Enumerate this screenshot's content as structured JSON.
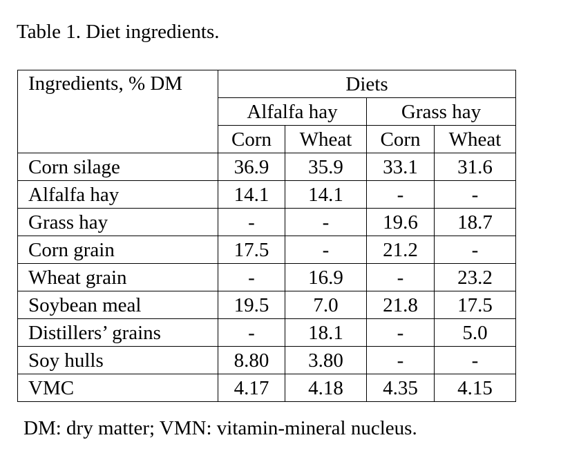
{
  "caption": "Table 1. Diet ingredients.",
  "table": {
    "corner_label": "Ingredients, % DM",
    "diets_label": "Diets",
    "groups": [
      "Alfalfa hay",
      "Grass hay"
    ],
    "subheaders": [
      "Corn",
      "Wheat",
      "Corn",
      "Wheat"
    ],
    "rows": [
      {
        "label": "Corn silage",
        "values": [
          "36.9",
          "35.9",
          "33.1",
          "31.6"
        ]
      },
      {
        "label": "Alfalfa hay",
        "values": [
          "14.1",
          "14.1",
          "-",
          "-"
        ]
      },
      {
        "label": "Grass hay",
        "values": [
          "-",
          "-",
          "19.6",
          "18.7"
        ]
      },
      {
        "label": "Corn grain",
        "values": [
          "17.5",
          "-",
          "21.2",
          "-"
        ]
      },
      {
        "label": "Wheat grain",
        "values": [
          "-",
          "16.9",
          "-",
          "23.2"
        ]
      },
      {
        "label": "Soybean meal",
        "values": [
          "19.5",
          "7.0",
          "21.8",
          "17.5"
        ]
      },
      {
        "label": "Distillers’ grains",
        "values": [
          "-",
          "18.1",
          "-",
          "5.0"
        ]
      },
      {
        "label": "Soy hulls",
        "values": [
          "8.80",
          "3.80",
          "-",
          "-"
        ]
      },
      {
        "label": "VMC",
        "values": [
          "4.17",
          "4.18",
          "4.35",
          "4.15"
        ]
      }
    ]
  },
  "footnote": "DM: dry matter; VMN: vitamin-mineral nucleus."
}
